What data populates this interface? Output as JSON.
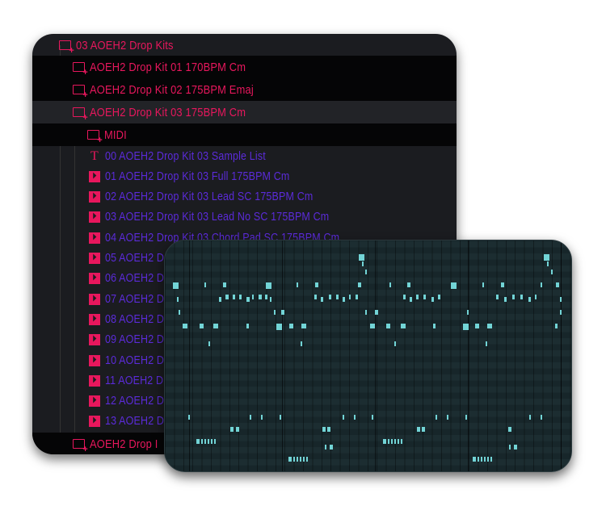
{
  "browser": {
    "folders_top": [
      {
        "label": "03 AOEH2 Drop Kits",
        "icon": "folder-plus-icon",
        "level": 0
      },
      {
        "label": "AOEH2 Drop Kit 01 170BPM Cm",
        "icon": "folder-plus-icon",
        "level": 1
      },
      {
        "label": "AOEH2 Drop Kit 02 175BPM Emaj",
        "icon": "folder-plus-icon",
        "level": 1
      },
      {
        "label": "AOEH2 Drop Kit 03 175BPM Cm",
        "icon": "folder-plus-icon",
        "level": 1
      },
      {
        "label": "MIDI",
        "icon": "folder-plus-icon",
        "level": 2
      }
    ],
    "files": [
      {
        "label": "00 AOEH2 Drop Kit 03 Sample List",
        "icon": "text-file-icon"
      },
      {
        "label": "01 AOEH2 Drop Kit 03 Full 175BPM Cm",
        "icon": "audio-file-icon"
      },
      {
        "label": "02 AOEH2 Drop Kit 03 Lead SC 175BPM Cm",
        "icon": "audio-file-icon"
      },
      {
        "label": "03 AOEH2 Drop Kit 03 Lead No SC 175BPM Cm",
        "icon": "audio-file-icon"
      },
      {
        "label": "04 AOEH2 Drop Kit 03 Chord Pad SC 175BPM Cm",
        "icon": "audio-file-icon"
      },
      {
        "label": "05 AOEH2 Dr",
        "icon": "audio-file-icon"
      },
      {
        "label": "06 AOEH2 Dr",
        "icon": "audio-file-icon"
      },
      {
        "label": "07 AOEH2 Dr",
        "icon": "audio-file-icon"
      },
      {
        "label": "08 AOEH2 Dr",
        "icon": "audio-file-icon"
      },
      {
        "label": "09 AOEH2 Dr",
        "icon": "audio-file-icon"
      },
      {
        "label": "10 AOEH2 Dr",
        "icon": "audio-file-icon"
      },
      {
        "label": "11 AOEH2 Dr",
        "icon": "audio-file-icon"
      },
      {
        "label": "12 AOEH2 Dr",
        "icon": "audio-file-icon"
      },
      {
        "label": "13 AOEH2 Dr",
        "icon": "audio-file-icon"
      }
    ],
    "folder_bottom": {
      "label": "AOEH2 Drop I",
      "icon": "folder-plus-icon",
      "level": 1
    }
  },
  "colors": {
    "folder": "#e8175d",
    "file": "#5b2bd9",
    "note": "#72d4d6",
    "panel": "#1b1c20",
    "roll": "#17262a"
  }
}
